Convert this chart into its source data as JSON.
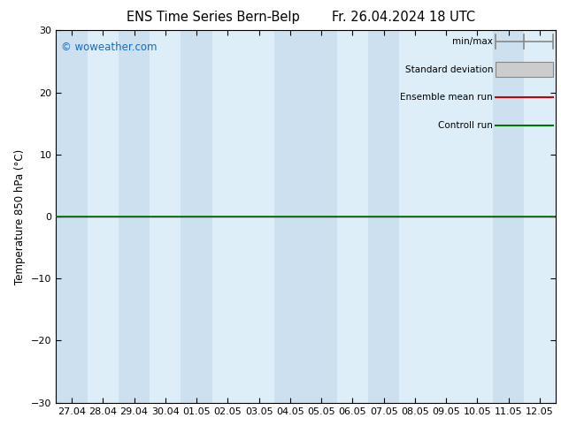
{
  "title_left": "ENS Time Series Bern-Belp",
  "title_right": "Fr. 26.04.2024 18 UTC",
  "ylabel": "Temperature 850 hPa (°C)",
  "ylim": [
    -30,
    30
  ],
  "yticks": [
    -30,
    -20,
    -10,
    0,
    10,
    20,
    30
  ],
  "x_labels": [
    "27.04",
    "28.04",
    "29.04",
    "30.04",
    "01.05",
    "02.05",
    "03.05",
    "04.05",
    "05.05",
    "06.05",
    "07.05",
    "08.05",
    "09.05",
    "10.05",
    "11.05",
    "12.05"
  ],
  "n_days": 16,
  "shaded_days": [
    0,
    2,
    4,
    7,
    8,
    10,
    14
  ],
  "shade_color": "#cce0f0",
  "plot_bg_color": "#ddeef8",
  "bg_color": "#ffffff",
  "watermark": "© woweather.com",
  "watermark_color": "#1a6abf",
  "legend_labels": [
    "min/max",
    "Standard deviation",
    "Ensemble mean run",
    "Controll run"
  ],
  "zero_line_color": "#1a1a00",
  "control_run_color": "#007700",
  "ensemble_mean_color": "#cc0000",
  "axis_color": "#000000",
  "tick_label_fontsize": 8,
  "title_fontsize": 10.5,
  "ylabel_fontsize": 8.5
}
